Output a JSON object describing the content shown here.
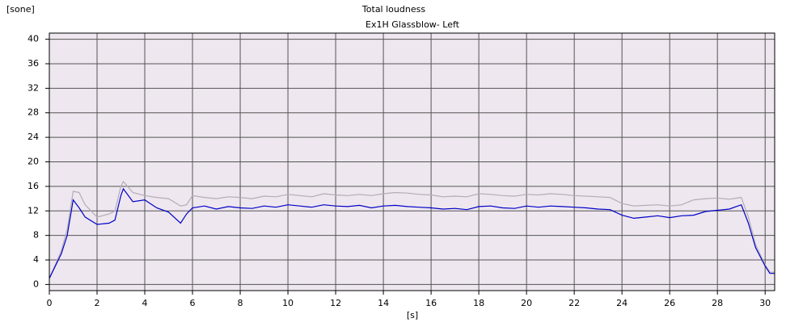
{
  "chart_data": {
    "type": "line",
    "title": "Total loudness",
    "subtitle": "Ex1H Glassblow- Left",
    "y_label": "[sone]",
    "x_label": "[s]",
    "x": [
      0,
      0.25,
      0.5,
      0.75,
      1,
      1.25,
      1.5,
      2,
      2.5,
      2.75,
      3,
      3.1,
      3.5,
      4,
      4.5,
      5,
      5.5,
      5.75,
      6,
      6.5,
      7,
      7.5,
      8,
      8.5,
      9,
      9.5,
      10,
      10.5,
      11,
      11.5,
      12,
      12.5,
      13,
      13.5,
      14,
      14.5,
      15,
      15.5,
      16,
      16.5,
      17,
      17.5,
      18,
      18.5,
      19,
      19.5,
      20,
      20.5,
      21,
      21.5,
      22,
      22.5,
      23,
      23.5,
      24,
      24.5,
      25,
      25.5,
      26,
      26.5,
      27,
      27.5,
      28,
      28.5,
      29,
      29.3,
      29.6,
      30,
      30.2,
      30.4
    ],
    "series": [
      {
        "color": "#b4acb6",
        "values": [
          1,
          3.2,
          5.5,
          9,
          15.2,
          15,
          13,
          11,
          11.5,
          12,
          16,
          16.8,
          15,
          14.5,
          14.2,
          14,
          12.8,
          13,
          14.5,
          14.2,
          14,
          14.3,
          14.2,
          14,
          14.4,
          14.3,
          14.7,
          14.5,
          14.3,
          14.8,
          14.6,
          14.5,
          14.7,
          14.5,
          14.8,
          15,
          14.9,
          14.7,
          14.6,
          14.3,
          14.4,
          14.3,
          14.8,
          14.7,
          14.5,
          14.4,
          14.7,
          14.6,
          14.8,
          14.7,
          14.5,
          14.4,
          14.3,
          14.2,
          13.2,
          12.8,
          12.9,
          13,
          12.8,
          13,
          13.8,
          14,
          14.1,
          13.9,
          14.2,
          11,
          6.5,
          3.2,
          2,
          2
        ]
      },
      {
        "color": "#0000c8",
        "values": [
          1,
          3,
          5,
          8,
          13.8,
          12.5,
          11,
          9.8,
          10,
          10.5,
          14.5,
          15.6,
          13.5,
          13.8,
          12.5,
          11.8,
          10,
          11.5,
          12.5,
          12.8,
          12.3,
          12.7,
          12.5,
          12.4,
          12.8,
          12.6,
          13,
          12.8,
          12.6,
          13,
          12.8,
          12.7,
          12.9,
          12.5,
          12.8,
          12.9,
          12.7,
          12.6,
          12.5,
          12.3,
          12.4,
          12.2,
          12.7,
          12.8,
          12.5,
          12.4,
          12.8,
          12.6,
          12.8,
          12.7,
          12.6,
          12.5,
          12.3,
          12.2,
          11.3,
          10.8,
          11,
          11.2,
          10.9,
          11.2,
          11.3,
          11.9,
          12.1,
          12.3,
          13,
          10,
          6,
          3,
          1.8,
          1.8
        ]
      }
    ],
    "xlim": [
      0,
      30.4
    ],
    "ylim": [
      -1,
      41
    ],
    "xticks": [
      0,
      2,
      4,
      6,
      8,
      10,
      12,
      14,
      16,
      18,
      20,
      22,
      24,
      26,
      28,
      30
    ],
    "yticks": [
      0,
      4,
      8,
      12,
      16,
      20,
      24,
      28,
      32,
      36,
      40
    ],
    "grid": true,
    "background": "#eee7ef",
    "grid_color": "#555555"
  }
}
